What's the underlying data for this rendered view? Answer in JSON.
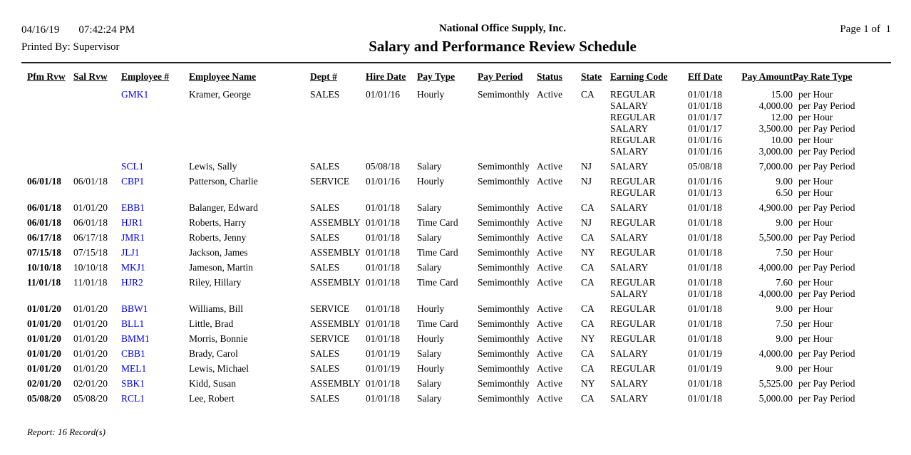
{
  "report": {
    "date": "04/16/19",
    "time": "07:42:24 PM",
    "printed_by_label": "Printed By:",
    "printed_by": "Supervisor",
    "company": "National Office Supply, Inc.",
    "title": "Salary and Performance Review Schedule",
    "page_label": "Page 1 of  1",
    "footer": "Report: 16 Record(s)"
  },
  "colors": {
    "employee_link_blue": "#0000EE",
    "rule_dark": "#1c1c1c",
    "text": "#000000"
  },
  "table": {
    "columns": [
      "Pfm Rvw",
      "Sal Rvw",
      "Employee #",
      "Employee Name",
      "Dept #",
      "Hire Date",
      "Pay Type",
      "Pay Period",
      "Status",
      "State",
      "Earning Code",
      "Eff Date",
      "Pay Amount",
      "Pay Rate Type"
    ],
    "rows": [
      {
        "pfm_rvw": "",
        "sal_rvw": "",
        "employee_id": "GMK1",
        "employee_name": "Kramer, George",
        "dept": "SALES",
        "hire_date": "01/01/16",
        "pay_type": "Hourly",
        "pay_period": "Semimonthly",
        "status": "Active",
        "state": "CA",
        "earnings": [
          {
            "code": "REGULAR",
            "eff_date": "01/01/18",
            "amount": "15.00",
            "rate_type": "per Hour"
          },
          {
            "code": "SALARY",
            "eff_date": "01/01/18",
            "amount": "4,000.00",
            "rate_type": "per Pay Period"
          },
          {
            "code": "REGULAR",
            "eff_date": "01/01/17",
            "amount": "12.00",
            "rate_type": "per Hour"
          },
          {
            "code": "SALARY",
            "eff_date": "01/01/17",
            "amount": "3,500.00",
            "rate_type": "per Pay Period"
          },
          {
            "code": "REGULAR",
            "eff_date": "01/01/16",
            "amount": "10.00",
            "rate_type": "per Hour"
          },
          {
            "code": "SALARY",
            "eff_date": "01/01/16",
            "amount": "3,000.00",
            "rate_type": "per Pay Period"
          }
        ]
      },
      {
        "pfm_rvw": "",
        "sal_rvw": "",
        "employee_id": "SCL1",
        "employee_name": "Lewis, Sally",
        "dept": "SALES",
        "hire_date": "05/08/18",
        "pay_type": "Salary",
        "pay_period": "Semimonthly",
        "status": "Active",
        "state": "NJ",
        "earnings": [
          {
            "code": "SALARY",
            "eff_date": "05/08/18",
            "amount": "7,000.00",
            "rate_type": "per Pay Period"
          }
        ]
      },
      {
        "pfm_rvw": "06/01/18",
        "sal_rvw": "06/01/18",
        "employee_id": "CBP1",
        "employee_name": "Patterson, Charlie",
        "dept": "SERVICE",
        "hire_date": "01/01/16",
        "pay_type": "Hourly",
        "pay_period": "Semimonthly",
        "status": "Active",
        "state": "NJ",
        "earnings": [
          {
            "code": "REGULAR",
            "eff_date": "01/01/16",
            "amount": "9.00",
            "rate_type": "per Hour"
          },
          {
            "code": "REGULAR",
            "eff_date": "01/01/13",
            "amount": "6.50",
            "rate_type": "per Hour"
          }
        ]
      },
      {
        "pfm_rvw": "06/01/18",
        "sal_rvw": "01/01/20",
        "employee_id": "EBB1",
        "employee_name": "Balanger, Edward",
        "dept": "SALES",
        "hire_date": "01/01/18",
        "pay_type": "Salary",
        "pay_period": "Semimonthly",
        "status": "Active",
        "state": "CA",
        "earnings": [
          {
            "code": "SALARY",
            "eff_date": "01/01/18",
            "amount": "4,900.00",
            "rate_type": "per Pay Period"
          }
        ]
      },
      {
        "pfm_rvw": "06/01/18",
        "sal_rvw": "06/01/18",
        "employee_id": "HJR1",
        "employee_name": "Roberts, Harry",
        "dept": "ASSEMBLY",
        "hire_date": "01/01/18",
        "pay_type": "Time Card",
        "pay_period": "Semimonthly",
        "status": "Active",
        "state": "NJ",
        "earnings": [
          {
            "code": "REGULAR",
            "eff_date": "01/01/18",
            "amount": "9.00",
            "rate_type": "per Hour"
          }
        ]
      },
      {
        "pfm_rvw": "06/17/18",
        "sal_rvw": "06/17/18",
        "employee_id": "JMR1",
        "employee_name": "Roberts, Jenny",
        "dept": "SALES",
        "hire_date": "01/01/18",
        "pay_type": "Salary",
        "pay_period": "Semimonthly",
        "status": "Active",
        "state": "CA",
        "earnings": [
          {
            "code": "SALARY",
            "eff_date": "01/01/18",
            "amount": "5,500.00",
            "rate_type": "per Pay Period"
          }
        ]
      },
      {
        "pfm_rvw": "07/15/18",
        "sal_rvw": "07/15/18",
        "employee_id": "JLJ1",
        "employee_name": "Jackson, James",
        "dept": "ASSEMBLY",
        "hire_date": "01/01/18",
        "pay_type": "Time Card",
        "pay_period": "Semimonthly",
        "status": "Active",
        "state": "NY",
        "earnings": [
          {
            "code": "REGULAR",
            "eff_date": "01/01/18",
            "amount": "7.50",
            "rate_type": "per Hour"
          }
        ]
      },
      {
        "pfm_rvw": "10/10/18",
        "sal_rvw": "10/10/18",
        "employee_id": "MKJ1",
        "employee_name": "Jameson, Martin",
        "dept": "SALES",
        "hire_date": "01/01/18",
        "pay_type": "Salary",
        "pay_period": "Semimonthly",
        "status": "Active",
        "state": "CA",
        "earnings": [
          {
            "code": "SALARY",
            "eff_date": "01/01/18",
            "amount": "4,000.00",
            "rate_type": "per Pay Period"
          }
        ]
      },
      {
        "pfm_rvw": "11/01/18",
        "sal_rvw": "11/01/18",
        "employee_id": "HJR2",
        "employee_name": "Riley, Hillary",
        "dept": "ASSEMBLY",
        "hire_date": "01/01/18",
        "pay_type": "Time Card",
        "pay_period": "Semimonthly",
        "status": "Active",
        "state": "CA",
        "earnings": [
          {
            "code": "REGULAR",
            "eff_date": "01/01/18",
            "amount": "7.60",
            "rate_type": "per Hour"
          },
          {
            "code": "SALARY",
            "eff_date": "01/01/18",
            "amount": "4,000.00",
            "rate_type": "per Pay Period"
          }
        ]
      },
      {
        "pfm_rvw": "01/01/20",
        "sal_rvw": "01/01/20",
        "employee_id": "BBW1",
        "employee_name": "Williams, Bill",
        "dept": "SERVICE",
        "hire_date": "01/01/18",
        "pay_type": "Hourly",
        "pay_period": "Semimonthly",
        "status": "Active",
        "state": "CA",
        "earnings": [
          {
            "code": "REGULAR",
            "eff_date": "01/01/18",
            "amount": "9.00",
            "rate_type": "per Hour"
          }
        ]
      },
      {
        "pfm_rvw": "01/01/20",
        "sal_rvw": "01/01/20",
        "employee_id": "BLL1",
        "employee_name": "Little, Brad",
        "dept": "ASSEMBLY",
        "hire_date": "01/01/18",
        "pay_type": "Time Card",
        "pay_period": "Semimonthly",
        "status": "Active",
        "state": "CA",
        "earnings": [
          {
            "code": "REGULAR",
            "eff_date": "01/01/18",
            "amount": "7.50",
            "rate_type": "per Hour"
          }
        ]
      },
      {
        "pfm_rvw": "01/01/20",
        "sal_rvw": "01/01/20",
        "employee_id": "BMM1",
        "employee_name": "Morris, Bonnie",
        "dept": "SERVICE",
        "hire_date": "01/01/18",
        "pay_type": "Hourly",
        "pay_period": "Semimonthly",
        "status": "Active",
        "state": "NY",
        "earnings": [
          {
            "code": "REGULAR",
            "eff_date": "01/01/18",
            "amount": "9.00",
            "rate_type": "per Hour"
          }
        ]
      },
      {
        "pfm_rvw": "01/01/20",
        "sal_rvw": "01/01/20",
        "employee_id": "CBB1",
        "employee_name": "Brady, Carol",
        "dept": "SALES",
        "hire_date": "01/01/19",
        "pay_type": "Salary",
        "pay_period": "Semimonthly",
        "status": "Active",
        "state": "CA",
        "earnings": [
          {
            "code": "SALARY",
            "eff_date": "01/01/19",
            "amount": "4,000.00",
            "rate_type": "per Pay Period"
          }
        ]
      },
      {
        "pfm_rvw": "01/01/20",
        "sal_rvw": "01/01/20",
        "employee_id": "MEL1",
        "employee_name": "Lewis, Michael",
        "dept": "SALES",
        "hire_date": "01/01/19",
        "pay_type": "Hourly",
        "pay_period": "Semimonthly",
        "status": "Active",
        "state": "CA",
        "earnings": [
          {
            "code": "REGULAR",
            "eff_date": "01/01/19",
            "amount": "9.00",
            "rate_type": "per Hour"
          }
        ]
      },
      {
        "pfm_rvw": "02/01/20",
        "sal_rvw": "02/01/20",
        "employee_id": "SBK1",
        "employee_name": "Kidd, Susan",
        "dept": "ASSEMBLY",
        "hire_date": "01/01/18",
        "pay_type": "Salary",
        "pay_period": "Semimonthly",
        "status": "Active",
        "state": "NY",
        "earnings": [
          {
            "code": "SALARY",
            "eff_date": "01/01/18",
            "amount": "5,525.00",
            "rate_type": "per Pay Period"
          }
        ]
      },
      {
        "pfm_rvw": "05/08/20",
        "sal_rvw": "05/08/20",
        "employee_id": "RCL1",
        "employee_name": "Lee, Robert",
        "dept": "SALES",
        "hire_date": "01/01/18",
        "pay_type": "Salary",
        "pay_period": "Semimonthly",
        "status": "Active",
        "state": "CA",
        "earnings": [
          {
            "code": "SALARY",
            "eff_date": "01/01/18",
            "amount": "5,000.00",
            "rate_type": "per Pay Period"
          }
        ]
      }
    ]
  }
}
